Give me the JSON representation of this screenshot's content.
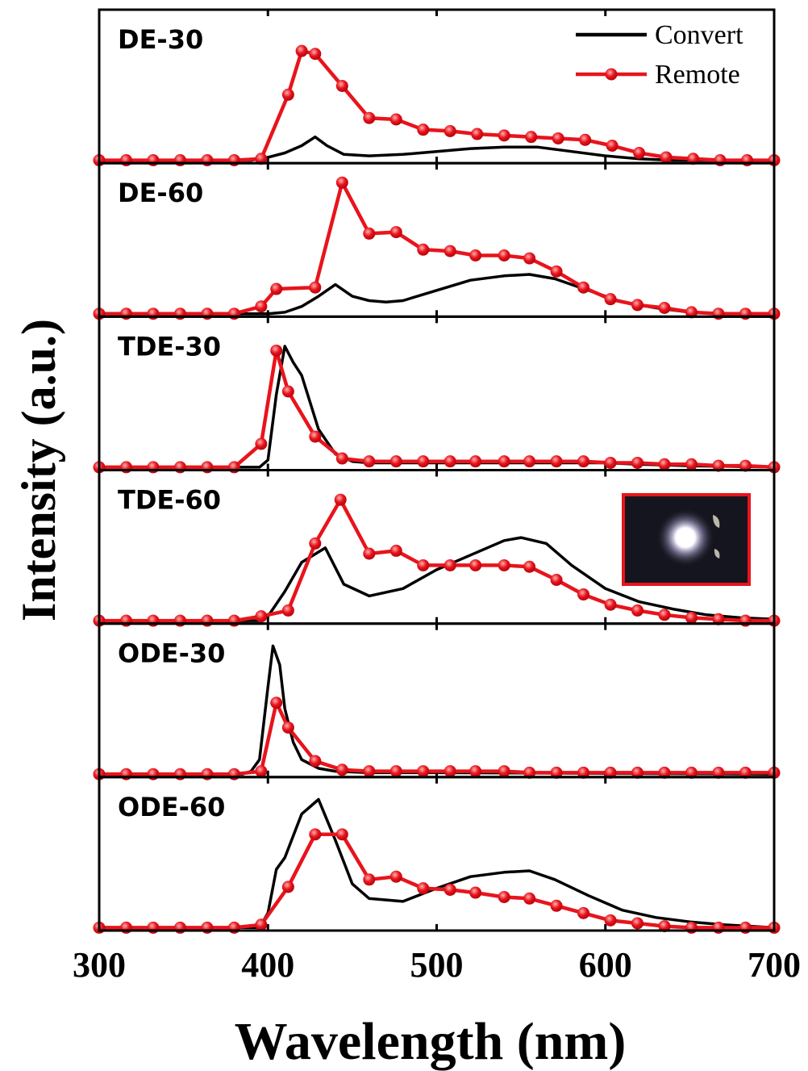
{
  "chart_data": [
    {
      "type": "line",
      "title": "DE-30",
      "y_label": "Intensity (a.u.)",
      "legend": "upper right",
      "xlim": [
        300,
        700
      ],
      "ylim": [
        -2,
        100
      ],
      "series": [
        {
          "name": "Convert",
          "color": "#000000",
          "x": [
            300,
            390,
            400,
            410,
            420,
            428,
            435,
            445,
            460,
            480,
            500,
            520,
            540,
            560,
            580,
            600,
            620,
            640,
            700
          ],
          "values": [
            0,
            0,
            2,
            5,
            10,
            16,
            10,
            4,
            3,
            4,
            6,
            8,
            9,
            9,
            6,
            3,
            1,
            0,
            0
          ]
        },
        {
          "name": "Remote",
          "color": "#e8141c",
          "x": [
            300,
            316,
            332,
            348,
            364,
            380,
            396,
            412,
            420,
            428,
            444,
            460,
            476,
            492,
            508,
            524,
            540,
            556,
            572,
            588,
            604,
            620,
            636,
            652,
            668,
            684,
            700
          ],
          "values": [
            0,
            0,
            0,
            0,
            0,
            0,
            1,
            45,
            75,
            73,
            51,
            29,
            28,
            21,
            20,
            18,
            17,
            16,
            15,
            14,
            10,
            5,
            2,
            1,
            0,
            0,
            0
          ]
        }
      ]
    },
    {
      "type": "line",
      "title": "DE-60",
      "xlim": [
        300,
        700
      ],
      "ylim": [
        -2,
        100
      ],
      "series": [
        {
          "name": "Convert",
          "color": "#000000",
          "x": [
            300,
            400,
            410,
            420,
            430,
            440,
            450,
            460,
            470,
            480,
            500,
            520,
            540,
            555,
            570,
            590,
            610,
            630,
            650,
            670,
            700
          ],
          "values": [
            0,
            0,
            1,
            5,
            12,
            20,
            12,
            9,
            8,
            9,
            16,
            23,
            26,
            27,
            24,
            16,
            8,
            4,
            1,
            0,
            0
          ]
        },
        {
          "name": "Remote",
          "color": "#e8141c",
          "x": [
            300,
            316,
            332,
            348,
            364,
            380,
            396,
            405,
            428,
            444,
            460,
            476,
            492,
            508,
            523,
            540,
            555,
            571,
            587,
            603,
            619,
            635,
            651,
            667,
            683,
            700
          ],
          "values": [
            0,
            0,
            0,
            0,
            0,
            0,
            5,
            17,
            18,
            90,
            55,
            56,
            44,
            43,
            40,
            40,
            38,
            29,
            18,
            10,
            6,
            4,
            1,
            0,
            0,
            0
          ]
        }
      ]
    },
    {
      "type": "line",
      "title": "TDE-30",
      "xlim": [
        300,
        700
      ],
      "ylim": [
        -2,
        100
      ],
      "series": [
        {
          "name": "Convert",
          "color": "#000000",
          "x": [
            300,
            395,
            400,
            405,
            410,
            415,
            420,
            430,
            440,
            450,
            460,
            500,
            550,
            600,
            620,
            650,
            700
          ],
          "values": [
            0,
            0,
            5,
            50,
            83,
            72,
            63,
            26,
            9,
            4,
            3,
            3,
            3,
            3,
            2,
            1,
            0
          ]
        },
        {
          "name": "Remote",
          "color": "#e8141c",
          "x": [
            300,
            316,
            332,
            348,
            364,
            380,
            396,
            405,
            412,
            428,
            444,
            460,
            476,
            492,
            508,
            523,
            540,
            555,
            571,
            587,
            603,
            619,
            635,
            651,
            667,
            683,
            700
          ],
          "values": [
            0,
            0,
            0,
            0,
            0,
            0,
            16,
            80,
            52,
            21,
            6,
            4,
            4,
            4,
            4,
            4,
            4,
            4,
            4,
            4,
            3,
            3,
            2,
            2,
            1,
            1,
            0
          ]
        }
      ]
    },
    {
      "type": "line",
      "title": "TDE-60",
      "xlim": [
        300,
        700
      ],
      "ylim": [
        -2,
        100
      ],
      "series": [
        {
          "name": "Convert",
          "color": "#000000",
          "x": [
            300,
            395,
            400,
            410,
            420,
            434,
            445,
            460,
            480,
            500,
            520,
            540,
            550,
            565,
            580,
            600,
            620,
            640,
            660,
            680,
            700
          ],
          "values": [
            0,
            0,
            3,
            20,
            40,
            50,
            25,
            17,
            22,
            35,
            45,
            55,
            57,
            53,
            38,
            22,
            13,
            8,
            4,
            2,
            1
          ]
        },
        {
          "name": "Remote",
          "color": "#e8141c",
          "x": [
            300,
            316,
            332,
            348,
            364,
            380,
            396,
            412,
            428,
            443,
            460,
            476,
            492,
            508,
            523,
            540,
            555,
            571,
            587,
            603,
            619,
            635,
            651,
            667,
            683,
            700
          ],
          "values": [
            0,
            0,
            0,
            0,
            0,
            0,
            3,
            7,
            53,
            83,
            46,
            48,
            38,
            38,
            38,
            38,
            37,
            28,
            18,
            11,
            7,
            4,
            2,
            1,
            0,
            0
          ]
        }
      ]
    },
    {
      "type": "line",
      "title": "ODE-30",
      "xlim": [
        300,
        700
      ],
      "ylim": [
        -2,
        100
      ],
      "series": [
        {
          "name": "Convert",
          "color": "#000000",
          "x": [
            300,
            385,
            390,
            395,
            400,
            403,
            407,
            410,
            415,
            420,
            430,
            440,
            460,
            500,
            700
          ],
          "values": [
            0,
            0,
            2,
            10,
            60,
            88,
            75,
            45,
            22,
            10,
            4,
            2,
            1,
            1,
            0
          ]
        },
        {
          "name": "Remote",
          "color": "#e8141c",
          "x": [
            300,
            316,
            332,
            348,
            364,
            380,
            396,
            405,
            412,
            428,
            444,
            460,
            476,
            492,
            508,
            523,
            540,
            555,
            571,
            587,
            603,
            619,
            635,
            651,
            667,
            683,
            700
          ],
          "values": [
            0,
            0,
            0,
            0,
            0,
            0,
            2,
            49,
            32,
            9,
            3,
            2,
            2,
            2,
            2,
            2,
            2,
            1,
            1,
            1,
            1,
            1,
            1,
            1,
            1,
            1,
            1
          ]
        }
      ]
    },
    {
      "type": "line",
      "title": "ODE-60",
      "x_label": "Wavelength (nm)",
      "xlim": [
        300,
        700
      ],
      "ylim": [
        -2,
        100
      ],
      "xticks": [
        300,
        400,
        500,
        600,
        700
      ],
      "series": [
        {
          "name": "Convert",
          "color": "#000000",
          "x": [
            300,
            395,
            400,
            405,
            410,
            420,
            430,
            440,
            450,
            460,
            480,
            500,
            520,
            540,
            555,
            570,
            590,
            610,
            630,
            650,
            670,
            700
          ],
          "values": [
            0,
            0,
            10,
            40,
            48,
            78,
            88,
            60,
            30,
            20,
            18,
            27,
            35,
            38,
            39,
            33,
            22,
            12,
            7,
            4,
            2,
            0
          ]
        },
        {
          "name": "Remote",
          "color": "#e8141c",
          "x": [
            300,
            316,
            332,
            348,
            364,
            380,
            396,
            412,
            428,
            444,
            460,
            476,
            492,
            508,
            523,
            540,
            555,
            571,
            587,
            603,
            619,
            635,
            651,
            667,
            683,
            700
          ],
          "values": [
            0,
            0,
            0,
            0,
            0,
            0,
            2,
            28,
            64,
            64,
            33,
            35,
            27,
            26,
            24,
            21,
            20,
            15,
            10,
            5,
            3,
            1,
            0,
            0,
            0,
            0
          ]
        }
      ]
    }
  ]
}
